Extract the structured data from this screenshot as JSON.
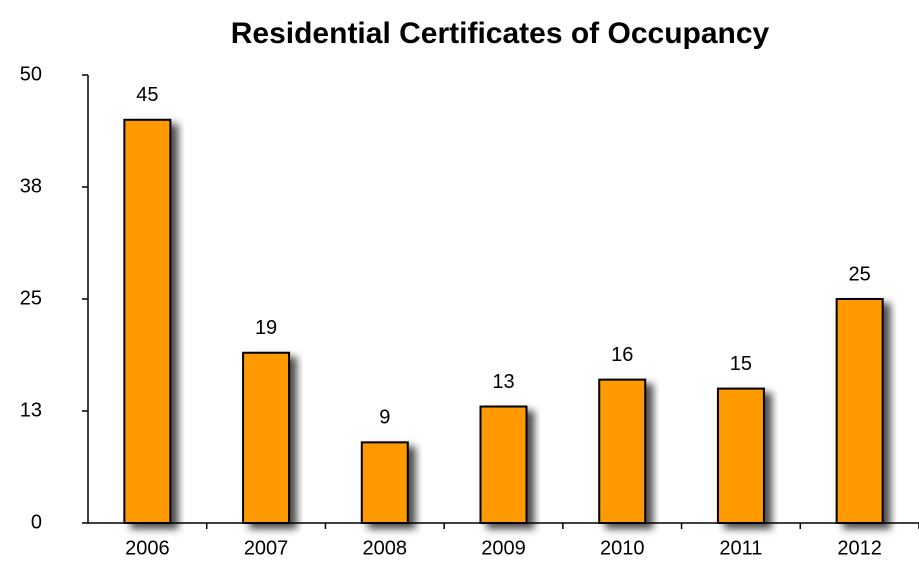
{
  "chart_data": {
    "type": "bar",
    "title": "Residential Certificates of Occupancy",
    "categories": [
      "2006",
      "2007",
      "2008",
      "2009",
      "2010",
      "2011",
      "2012"
    ],
    "values": [
      45,
      19,
      9,
      13,
      16,
      15,
      25
    ],
    "color": "#ff9900",
    "ylim": [
      0,
      50
    ],
    "yticks": [
      0,
      {
        "value": 12.5,
        "label": "13"
      },
      25,
      {
        "value": 37.5,
        "label": "38"
      },
      50
    ]
  }
}
